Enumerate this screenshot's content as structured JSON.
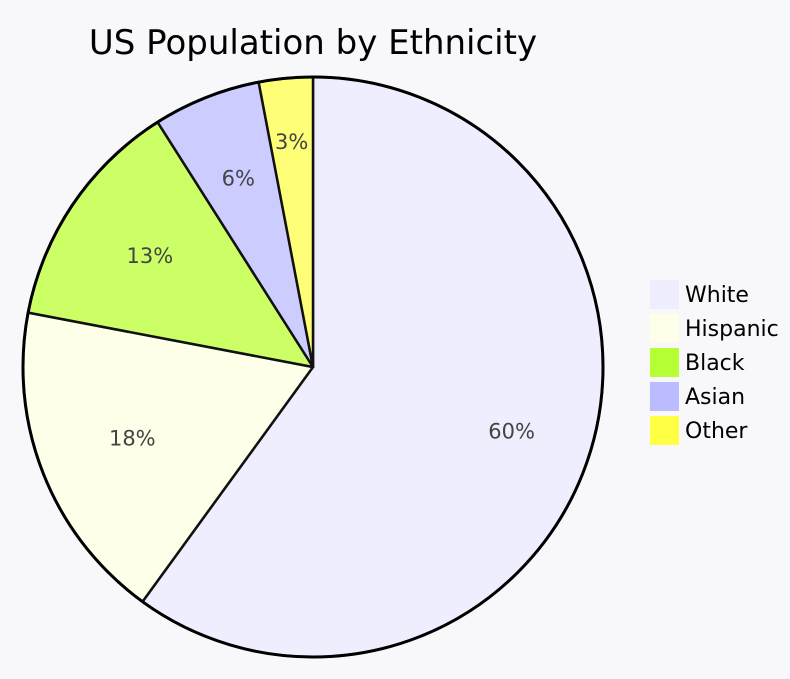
{
  "chart_data": {
    "type": "pie",
    "title": "US Population by Ethnicity",
    "categories": [
      "White",
      "Hispanic",
      "Black",
      "Asian",
      "Other"
    ],
    "values": [
      60,
      18,
      13,
      6,
      3
    ],
    "labels": [
      "60%",
      "18%",
      "13%",
      "6%",
      "3%"
    ],
    "colors": [
      "#eeeeff",
      "#fdffe8",
      "#ccff66",
      "#ccccff",
      "#ffff77"
    ],
    "legend_colors": [
      "#eeeeff",
      "#fdffe8",
      "#b5ff33",
      "#bbbbff",
      "#ffff44"
    ],
    "start_angle": "top",
    "direction": "clockwise",
    "legend_position": "right"
  }
}
